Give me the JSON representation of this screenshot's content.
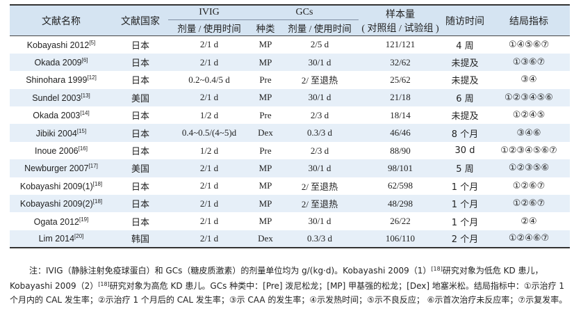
{
  "header": {
    "literature": "文献名称",
    "country": "文献国家",
    "ivig": "IVIG",
    "ivig_dose": "剂量 / 使用时间",
    "gcs": "GCs",
    "gcs_type": "种类",
    "gcs_dose": "剂量 / 使用时间",
    "sample_line1": "样本量",
    "sample_line2": "( 对照组 / 试验组 )",
    "followup": "随访时间",
    "outcome": "结局指标"
  },
  "rows": [
    {
      "name": "Kobayashi  2012",
      "ref": "[5]",
      "country": "日本",
      "ivig": "2/1 d",
      "type": "MP",
      "gcs": "2/5 d",
      "sample": "121/121",
      "followup": "4 周",
      "outcome": "①④⑤⑥⑦"
    },
    {
      "name": "Okada  2009",
      "ref": "[6]",
      "country": "日本",
      "ivig": "2/1 d",
      "type": "MP",
      "gcs": "30/1 d",
      "sample": "32/62",
      "followup": "未提及",
      "outcome": "①③⑥⑦"
    },
    {
      "name": "Shinohara 1999",
      "ref": "[12]",
      "country": "日本",
      "ivig": "0.2~0.4/5 d",
      "type": "Pre",
      "gcs": "2/ 至退热",
      "sample": "25/62",
      "followup": "未提及",
      "outcome": "③④"
    },
    {
      "name": "Sundel 2003",
      "ref": "[13]",
      "country": "美国",
      "ivig": "2/1 d",
      "type": "MP",
      "gcs": "30/1 d",
      "sample": "21/18",
      "followup": "6 周",
      "outcome": "①②③④⑤⑥"
    },
    {
      "name": "Okada 2003",
      "ref": "[14]",
      "country": "日本",
      "ivig": "1/2 d",
      "type": "Pre",
      "gcs": "2/3 d",
      "sample": "18/14",
      "followup": "未提及",
      "outcome": "①②④⑤"
    },
    {
      "name": "Jibiki 2004",
      "ref": "[15]",
      "country": "日本",
      "ivig": "0.4~0.5/(4~5)d",
      "type": "Dex",
      "gcs": "0.3/3 d",
      "sample": "46/46",
      "followup": "8 个月",
      "outcome": "③④⑥"
    },
    {
      "name": "Inoue 2006",
      "ref": "[16]",
      "country": "日本",
      "ivig": "1/2 d",
      "type": "Pre",
      "gcs": "2/3 d",
      "sample": "88/90",
      "followup": "30 d",
      "outcome": "①②③④⑤⑥⑦"
    },
    {
      "name": "Newburger 2007",
      "ref": "[17]",
      "country": "美国",
      "ivig": "2/1 d",
      "type": "MP",
      "gcs": "30/1 d",
      "sample": "98/101",
      "followup": "5 周",
      "outcome": "①②③⑤⑥"
    },
    {
      "name": "Kobayashi  2009(1)",
      "ref": "[18]",
      "country": "日本",
      "ivig": "2/1 d",
      "type": "MP",
      "gcs": "2/ 至退热",
      "sample": "62/598",
      "followup": "1 个月",
      "outcome": "①②⑥⑦"
    },
    {
      "name": "Kobayashi  2009(2)",
      "ref": "[18]",
      "country": "日本",
      "ivig": "2/1 d",
      "type": "MP",
      "gcs": "2/ 至退热",
      "sample": "48/298",
      "followup": "1 个月",
      "outcome": "①②⑥⑦"
    },
    {
      "name": "Ogata  2012",
      "ref": "[19]",
      "country": "日本",
      "ivig": "2/1 d",
      "type": "MP",
      "gcs": "30/1 d",
      "sample": "26/22",
      "followup": "1 个月",
      "outcome": "②④"
    },
    {
      "name": "Lim  2014",
      "ref": "[20]",
      "country": "韩国",
      "ivig": "2/1 d",
      "type": "Dex",
      "gcs": "0.3/3 d",
      "sample": "106/110",
      "followup": "2 个月",
      "outcome": "①②④⑥⑦"
    }
  ],
  "note": {
    "p1_a": "注：IVIG（静脉注射免疫球蛋白）和 GCs（糖皮质激素）的剂量单位均为 g/(kg·d)。Kobayashi  2009（1）",
    "p1_ref1": "[18]",
    "p1_b": "研究对象为低危 KD 患儿，Kobayashi 2009（2）",
    "p1_ref2": "[18]",
    "p1_c": "研究对象为高危 KD 患儿。GCs 种类中：[Pre] 泼尼松龙；[MP] 甲基强的松龙；[Dex] 地塞米松。结局指标中：①示治疗 1 个月内的 CAL 发生率；②示治疗 1 个月后的 CAL 发生率；③示 CAA 的发生率；④示发热时间；⑤示不良反应；  ⑥示首次治疗未反应率；⑦示复发率。"
  }
}
